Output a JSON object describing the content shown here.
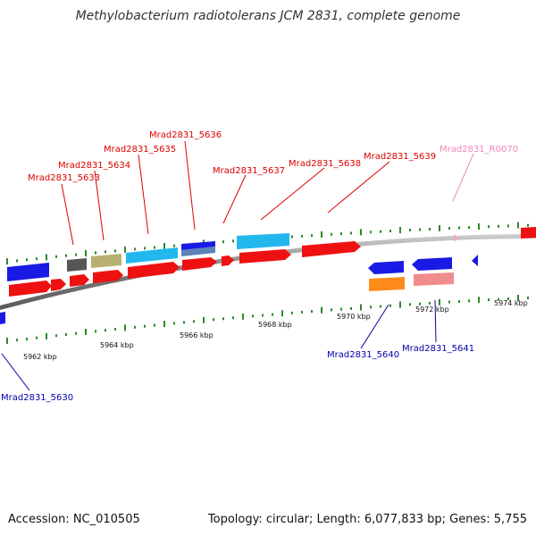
{
  "title": "Methylobacterium radiotolerans JCM 2831, complete genome",
  "footer": {
    "accession": "Accession: NC_010505",
    "summary": "Topology: circular; Length: 6,077,833 bp; Genes: 5,755"
  },
  "colors": {
    "forward_label": "#dd0000",
    "reverse_label": "#0000aa",
    "rna_label": "#ee88bb",
    "tick": "#2a8a2a",
    "backbone": "#8c8c8c"
  },
  "scale_labels": [
    "5962 kbp",
    "5964 kbp",
    "5966 kbp",
    "5968 kbp",
    "5970 kbp",
    "5972 kbp",
    "5974 kbp"
  ],
  "gene_labels": {
    "g5633": "Mrad2831_5633",
    "g5634": "Mrad2831_5634",
    "g5635": "Mrad2831_5635",
    "g5636": "Mrad2831_5636",
    "g5637": "Mrad2831_5637",
    "g5638": "Mrad2831_5638",
    "g5639": "Mrad2831_5639",
    "gR0070": "Mrad2831_R0070",
    "g5640": "Mrad2831_5640",
    "g5641": "Mrad2831_5641",
    "g5630": "Mrad2831_5630"
  }
}
